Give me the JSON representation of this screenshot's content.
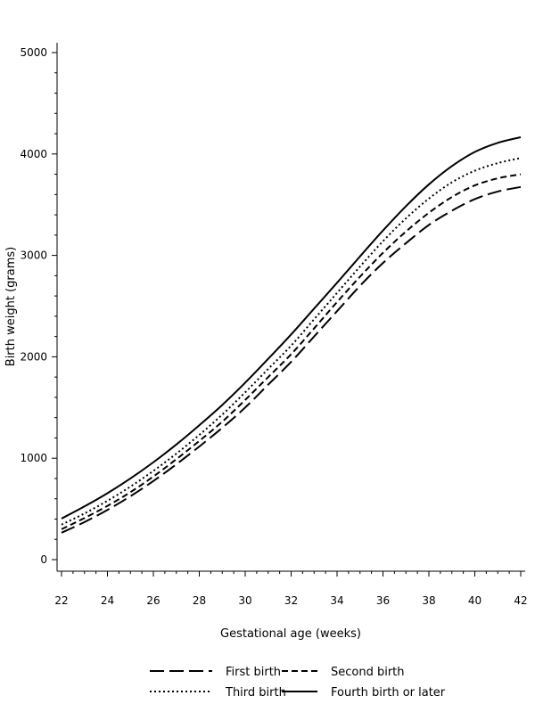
{
  "chart_data": {
    "type": "line",
    "xlabel": "Gestational age (weeks)",
    "ylabel": "Birth weight (grams)",
    "xlim": [
      22,
      42
    ],
    "ylim": [
      0,
      5000
    ],
    "x_ticks": [
      22,
      24,
      26,
      28,
      30,
      32,
      34,
      36,
      38,
      40,
      42
    ],
    "y_ticks": [
      0,
      1000,
      2000,
      3000,
      4000,
      5000
    ],
    "grid": false,
    "legend_position": "bottom",
    "x": [
      22,
      23,
      24,
      25,
      26,
      27,
      28,
      29,
      30,
      31,
      32,
      33,
      34,
      35,
      36,
      37,
      38,
      39,
      40,
      41,
      42
    ],
    "series": [
      {
        "name": "First birth",
        "dash": "long-dash",
        "values": [
          265,
          370,
          490,
          625,
          775,
          940,
          1115,
          1300,
          1500,
          1725,
          1950,
          2200,
          2450,
          2700,
          2925,
          3120,
          3300,
          3440,
          3555,
          3630,
          3675
        ]
      },
      {
        "name": "Second birth",
        "dash": "short-dash",
        "values": [
          300,
          410,
          530,
          665,
          820,
          990,
          1170,
          1360,
          1575,
          1800,
          2025,
          2280,
          2540,
          2790,
          3025,
          3235,
          3420,
          3575,
          3690,
          3760,
          3800
        ]
      },
      {
        "name": "Third birth",
        "dash": "dotted",
        "values": [
          345,
          455,
          580,
          720,
          875,
          1045,
          1230,
          1430,
          1650,
          1880,
          2110,
          2370,
          2630,
          2890,
          3140,
          3365,
          3560,
          3720,
          3835,
          3910,
          3960
        ]
      },
      {
        "name": "Fourth birth or later",
        "dash": "solid",
        "values": [
          405,
          525,
          655,
          800,
          960,
          1135,
          1325,
          1525,
          1745,
          1980,
          2220,
          2475,
          2730,
          2990,
          3245,
          3485,
          3700,
          3880,
          4020,
          4110,
          4165
        ]
      }
    ]
  }
}
